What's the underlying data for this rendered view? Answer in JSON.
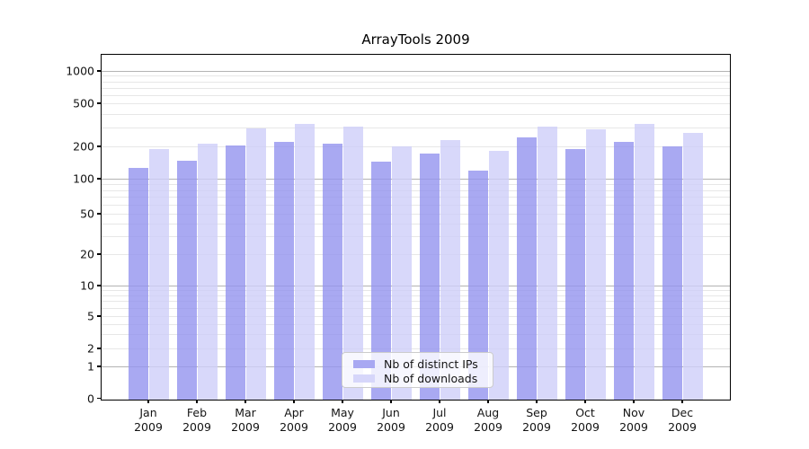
{
  "chart_data": {
    "type": "bar",
    "title": "ArrayTools 2009",
    "categories": [
      "Jan",
      "Feb",
      "Mar",
      "Apr",
      "May",
      "Jun",
      "Jul",
      "Aug",
      "Sep",
      "Oct",
      "Nov",
      "Dec"
    ],
    "x_axis": {
      "second_line": "2009"
    },
    "y_axis": {
      "scale": "log-1-2-5-with-zero-baseline",
      "ticks": [
        0,
        1,
        2,
        5,
        10,
        20,
        50,
        100,
        200,
        500,
        1000
      ],
      "ylim": [
        0,
        1000
      ]
    },
    "series": [
      {
        "name": "Nb of distinct IPs",
        "legend_color": "#a8a8f2",
        "bar_color": "rgba(147,147,239,0.8)",
        "values": [
          126,
          148,
          204,
          221,
          212,
          144,
          171,
          119,
          243,
          188,
          220,
          199
        ]
      },
      {
        "name": "Nb of downloads",
        "legend_color": "#d6d6fa",
        "bar_color": "rgba(206,206,249,0.8)",
        "values": [
          188,
          212,
          293,
          324,
          306,
          200,
          228,
          181,
          305,
          288,
          322,
          266
        ]
      }
    ],
    "legend_position": "inside-bottom-center",
    "grid": {
      "major_color": "#b3b3b3",
      "minor_color": "#e7e7e7",
      "enabled": true
    }
  }
}
